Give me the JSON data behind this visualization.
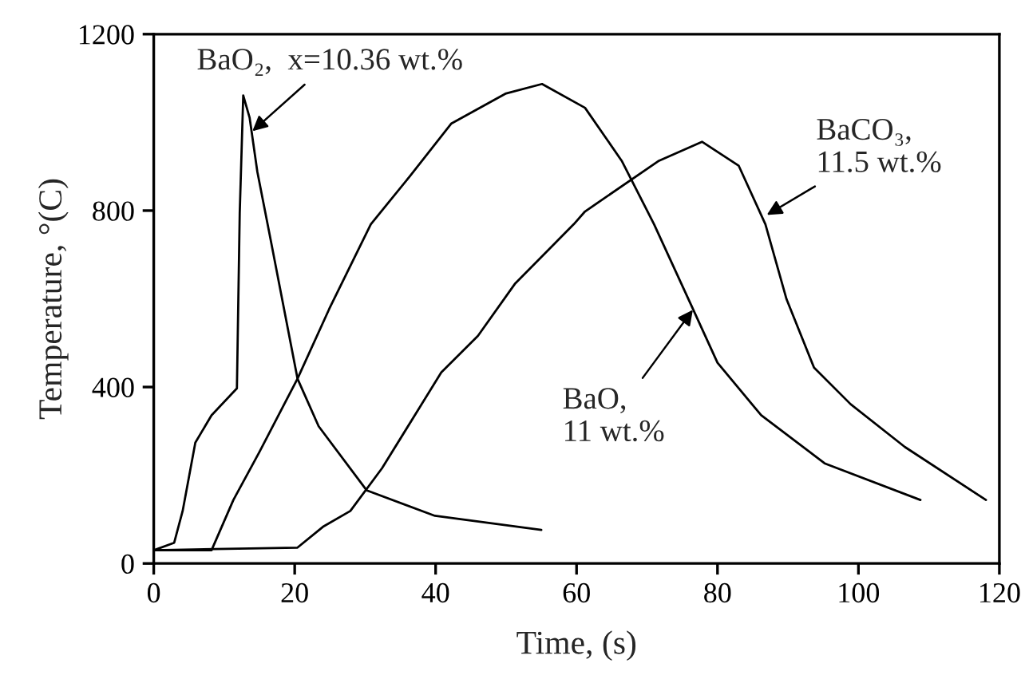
{
  "chart_data": {
    "type": "line",
    "xlabel": "Time, (s)",
    "ylabel": "Temperature, °(C)",
    "xlim": [
      0,
      120
    ],
    "ylim": [
      0,
      1200
    ],
    "xticks": [
      0,
      20,
      40,
      60,
      80,
      100,
      120
    ],
    "yticks": [
      0,
      400,
      800,
      1200
    ],
    "grid": false,
    "marker": "none",
    "line_style": "solid",
    "series": [
      {
        "color": "#000000",
        "x": [
          0,
          2.9,
          4.1,
          5.9,
          8.2,
          11.8,
          12.2,
          12.7,
          13.6,
          14.7,
          16.6,
          20.4,
          23.4,
          30.2,
          39.9,
          55
        ],
        "values": [
          30,
          47,
          119,
          274,
          336,
          397,
          794,
          1061,
          1011,
          888,
          733,
          419,
          311,
          166,
          108,
          76
        ]
      },
      {
        "color": "#000000",
        "x": [
          0,
          8.2,
          11.3,
          15,
          20.4,
          24.9,
          30.8,
          36.3,
          42.2,
          49.9,
          55.1,
          61.2,
          66.4,
          71,
          76.2,
          80,
          86.2,
          95.2,
          108.8
        ],
        "values": [
          30,
          30,
          144,
          253,
          419,
          577,
          769,
          877,
          997,
          1065,
          1087,
          1033,
          913,
          769,
          588,
          455,
          336,
          227,
          144
        ]
      },
      {
        "color": "#000000",
        "x": [
          0,
          20.4,
          24,
          27.9,
          32.4,
          40.8,
          46,
          51.3,
          59.6,
          61.2,
          71.7,
          77.8,
          83,
          86.8,
          89.8,
          93.7,
          98.9,
          106.6,
          118.1
        ],
        "values": [
          30,
          36,
          83,
          119,
          216,
          433,
          516,
          635,
          769,
          798,
          913,
          956,
          902,
          769,
          599,
          444,
          361,
          264,
          144
        ]
      }
    ],
    "annotations": [
      {
        "text": "BaO₂,  x=10.36 wt.%",
        "x": 14,
        "y": 980
      },
      {
        "text": "BaCO₃,\n11.5 wt.%",
        "x": 87,
        "y": 790
      },
      {
        "text": "BaO,\n11 wt.%",
        "x": 76.5,
        "y": 575
      }
    ]
  }
}
